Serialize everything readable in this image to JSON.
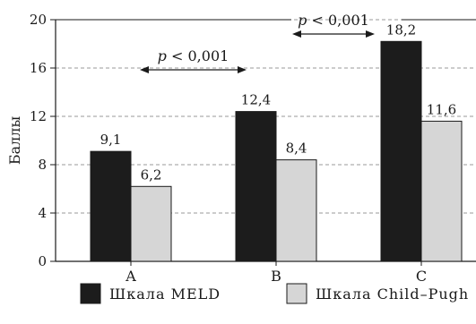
{
  "chart_data": {
    "type": "bar",
    "categories": [
      "A",
      "B",
      "C"
    ],
    "series": [
      {
        "name": "Шкала MELD",
        "values": [
          9.1,
          12.4,
          18.2
        ],
        "labels": [
          "9,1",
          "12,4",
          "18,2"
        ],
        "color": "#1c1c1c"
      },
      {
        "name": "Шкала Child–Pugh",
        "values": [
          6.2,
          8.4,
          11.6
        ],
        "labels": [
          "6,2",
          "8,4",
          "11,6"
        ],
        "color": "#d6d6d6"
      }
    ],
    "ylabel": "Баллы",
    "ylim": [
      0,
      20
    ],
    "yticks": [
      0,
      4,
      8,
      12,
      16,
      20
    ],
    "grid": true,
    "legend": "bottom",
    "annotations": [
      {
        "text": "p < 0,001",
        "from": "A",
        "to": "B"
      },
      {
        "text": "p < 0,001",
        "from": "B",
        "to": "C"
      }
    ]
  }
}
